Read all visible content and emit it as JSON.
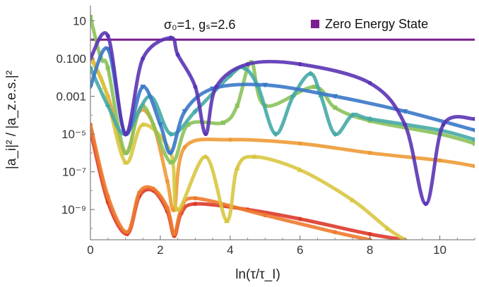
{
  "chart_data": {
    "type": "scatter",
    "title": "",
    "annotation": "σ₀=1, gₛ=2.6",
    "xlabel": "ln(τ/τ_I)",
    "ylabel": "|a_i|² / |a_z.e.s.|²",
    "xlim": [
      0,
      11
    ],
    "ylim_log10": [
      -10.6,
      1.8
    ],
    "y_scale": "log",
    "grid": false,
    "legend_position": "top-right",
    "x_ticks": [
      0,
      2,
      4,
      6,
      8,
      10
    ],
    "y_ticks": [
      {
        "label": "10",
        "exp": 1
      },
      {
        "label": "0.100",
        "exp": -1
      },
      {
        "label": "0.001",
        "exp": -3
      },
      {
        "label": "10⁻⁵",
        "exp": -5
      },
      {
        "label": "10⁻⁷",
        "exp": -7
      },
      {
        "label": "10⁻⁹",
        "exp": -9
      }
    ],
    "series": [
      {
        "name": "Zero Energy State",
        "legend": true,
        "color": "#7b1f8c",
        "marker": "line",
        "points": [
          [
            0,
            0
          ],
          [
            11,
            0
          ]
        ]
      },
      {
        "color": "#dd3a2a",
        "marker": "circle",
        "points": [
          [
            0,
            -4.8
          ],
          [
            0.5,
            -8.6
          ],
          [
            1.05,
            -10.3
          ],
          [
            1.4,
            -8.3
          ],
          [
            1.8,
            -8.0
          ],
          [
            2.2,
            -9.1
          ],
          [
            2.4,
            -10.4
          ],
          [
            2.6,
            -9.2
          ],
          [
            3.0,
            -8.7
          ],
          [
            4.5,
            -9.0
          ],
          [
            6.0,
            -9.5
          ],
          [
            8.0,
            -10.3
          ],
          [
            9.0,
            -10.6
          ]
        ]
      },
      {
        "color": "#ee7a2e",
        "marker": "circle",
        "points": [
          [
            0,
            -4.5
          ],
          [
            0.5,
            -8.3
          ],
          [
            1.05,
            -10.2
          ],
          [
            1.4,
            -8.1
          ],
          [
            1.8,
            -7.9
          ],
          [
            2.2,
            -8.9
          ],
          [
            2.4,
            -10.3
          ],
          [
            2.6,
            -9.0
          ],
          [
            3.0,
            -8.4
          ],
          [
            5.0,
            -9.3
          ],
          [
            7.0,
            -10.2
          ],
          [
            8.0,
            -10.6
          ]
        ]
      },
      {
        "color": "#ee9a36",
        "marker": "circle",
        "points": [
          [
            0,
            -0.8
          ],
          [
            0.5,
            -3.0
          ],
          [
            1.0,
            -6.0
          ],
          [
            1.4,
            -3.8
          ],
          [
            1.8,
            -4.5
          ],
          [
            2.2,
            -7.5
          ],
          [
            2.4,
            -9.0
          ],
          [
            2.7,
            -5.7
          ],
          [
            4,
            -5.3
          ],
          [
            6,
            -5.5
          ],
          [
            8,
            -6.0
          ],
          [
            10,
            -6.4
          ],
          [
            11,
            -6.7
          ]
        ]
      },
      {
        "color": "#d8c640",
        "marker": "triangle-up",
        "points": [
          [
            0,
            -1.0
          ],
          [
            0.4,
            -2.5
          ],
          [
            1.0,
            -6.5
          ],
          [
            1.5,
            -4.5
          ],
          [
            2.3,
            -6.0
          ],
          [
            2.5,
            -9.0
          ],
          [
            3.3,
            -6.2
          ],
          [
            3.9,
            -9.6
          ],
          [
            4.2,
            -6.8
          ],
          [
            4.7,
            -6.2
          ],
          [
            6.0,
            -6.9
          ],
          [
            7.5,
            -8.5
          ],
          [
            8.5,
            -10.0
          ],
          [
            9.0,
            -10.6
          ]
        ]
      },
      {
        "color": "#8bc25a",
        "marker": "square",
        "points": [
          [
            0,
            1.2
          ],
          [
            0.3,
            -1.0
          ],
          [
            0.5,
            -1.5
          ],
          [
            1.0,
            -6.0
          ],
          [
            1.5,
            -3.5
          ],
          [
            2.3,
            -6.5
          ],
          [
            2.8,
            -4.5
          ],
          [
            3.8,
            -4.4
          ],
          [
            4.2,
            -3.5
          ],
          [
            4.6,
            -1.2
          ],
          [
            5.0,
            -3.5
          ],
          [
            6.4,
            -2.5
          ],
          [
            7.0,
            -3.6
          ],
          [
            8,
            -4.3
          ],
          [
            10,
            -5.0
          ],
          [
            11,
            -5.5
          ]
        ]
      },
      {
        "color": "#45aaa6",
        "marker": "diamond",
        "points": [
          [
            0,
            -1.5
          ],
          [
            0.5,
            -3.5
          ],
          [
            1.0,
            -5.0
          ],
          [
            1.7,
            -3.0
          ],
          [
            2.3,
            -5.0
          ],
          [
            3.0,
            -3.8
          ],
          [
            4.0,
            -1.9
          ],
          [
            4.4,
            -1.5
          ],
          [
            4.8,
            -2.5
          ],
          [
            5.3,
            -5.0
          ],
          [
            5.8,
            -3.0
          ],
          [
            6.3,
            -1.8
          ],
          [
            6.6,
            -3.0
          ],
          [
            7.0,
            -5.0
          ],
          [
            7.5,
            -4.0
          ],
          [
            8,
            -4.2
          ],
          [
            10,
            -4.8
          ],
          [
            11,
            -5.3
          ]
        ]
      },
      {
        "color": "#3a78c8",
        "marker": "triangle-down",
        "points": [
          [
            0,
            -2.5
          ],
          [
            0.5,
            -0.5
          ],
          [
            1.0,
            -5.0
          ],
          [
            1.5,
            -2.5
          ],
          [
            2.0,
            -4.5
          ],
          [
            2.3,
            -6.0
          ],
          [
            2.7,
            -3.8
          ],
          [
            3.5,
            -2.6
          ],
          [
            5,
            -2.4
          ],
          [
            7,
            -3.0
          ],
          [
            9,
            -3.8
          ],
          [
            11,
            -4.8
          ]
        ]
      },
      {
        "color": "#5a34b4",
        "marker": "circle",
        "points": [
          [
            0,
            -1.0
          ],
          [
            0.5,
            0.2
          ],
          [
            1.0,
            -5.0
          ],
          [
            1.5,
            -1.0
          ],
          [
            2.3,
            0.1
          ],
          [
            2.5,
            -0.8
          ],
          [
            3.0,
            -2.5
          ],
          [
            3.3,
            -5.0
          ],
          [
            3.6,
            -2.5
          ],
          [
            4.5,
            -1.3
          ],
          [
            6,
            -1.3
          ],
          [
            8,
            -2.3
          ],
          [
            9.0,
            -4.5
          ],
          [
            9.6,
            -8.7
          ],
          [
            10.1,
            -4.5
          ],
          [
            11,
            -4.2
          ]
        ]
      }
    ]
  }
}
